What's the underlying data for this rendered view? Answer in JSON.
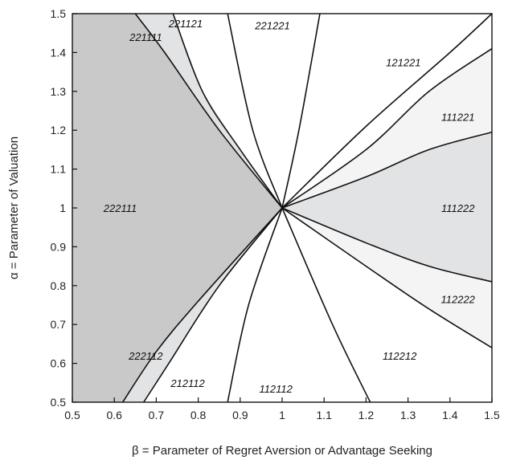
{
  "chart_data": {
    "type": "area",
    "xlabel": "β = Parameter of Regret Aversion or Advantage Seeking",
    "ylabel": "α = Parameter of Valuation",
    "xlim": [
      0.5,
      1.5
    ],
    "ylim": [
      0.5,
      1.5
    ],
    "x_ticks": [
      "0.5",
      "0.6",
      "0.7",
      "0.8",
      "0.9",
      "1",
      "1.1",
      "1.2",
      "1.3",
      "1.4",
      "1.5"
    ],
    "y_ticks": [
      "0.5",
      "0.6",
      "0.7",
      "0.8",
      "0.9",
      "1",
      "1.1",
      "1.2",
      "1.3",
      "1.4",
      "1.5"
    ],
    "grid": false,
    "colors": {
      "dark_gray": "#c9c9c9",
      "light_gray": "#e2e3e5",
      "lighter_gray": "#f4f4f4",
      "white": "#ffffff",
      "line": "#111111"
    },
    "boundaries": [
      {
        "name": "b1",
        "points": [
          [
            1,
            1
          ],
          [
            0.85,
            1.2
          ],
          [
            0.72,
            1.4
          ],
          [
            0.65,
            1.5
          ]
        ]
      },
      {
        "name": "b2",
        "points": [
          [
            1,
            1
          ],
          [
            0.9,
            1.15
          ],
          [
            0.81,
            1.3
          ],
          [
            0.74,
            1.5
          ]
        ]
      },
      {
        "name": "b3",
        "points": [
          [
            1,
            1
          ],
          [
            0.93,
            1.2
          ],
          [
            0.87,
            1.5
          ]
        ]
      },
      {
        "name": "b4",
        "points": [
          [
            1,
            1
          ],
          [
            1.04,
            1.2
          ],
          [
            1.09,
            1.5
          ]
        ]
      },
      {
        "name": "b5",
        "points": [
          [
            1,
            1
          ],
          [
            1.2,
            1.21
          ],
          [
            1.4,
            1.4
          ],
          [
            1.5,
            1.5
          ]
        ]
      },
      {
        "name": "b6",
        "points": [
          [
            1,
            1
          ],
          [
            1.2,
            1.15
          ],
          [
            1.35,
            1.3
          ],
          [
            1.5,
            1.41
          ]
        ]
      },
      {
        "name": "b7",
        "points": [
          [
            1,
            1
          ],
          [
            1.2,
            1.08
          ],
          [
            1.35,
            1.15
          ],
          [
            1.5,
            1.195
          ]
        ]
      },
      {
        "name": "b8",
        "points": [
          [
            1,
            1
          ],
          [
            1.2,
            0.91
          ],
          [
            1.35,
            0.85
          ],
          [
            1.5,
            0.81
          ]
        ]
      },
      {
        "name": "b9",
        "points": [
          [
            1,
            1
          ],
          [
            1.2,
            0.85
          ],
          [
            1.35,
            0.74
          ],
          [
            1.5,
            0.64
          ]
        ]
      },
      {
        "name": "b10",
        "points": [
          [
            1,
            1
          ],
          [
            1.12,
            0.7
          ],
          [
            1.21,
            0.5
          ]
        ]
      },
      {
        "name": "b11",
        "points": [
          [
            1,
            1
          ],
          [
            0.92,
            0.75
          ],
          [
            0.87,
            0.5
          ]
        ]
      },
      {
        "name": "b12",
        "points": [
          [
            1,
            1
          ],
          [
            0.85,
            0.8
          ],
          [
            0.73,
            0.6
          ],
          [
            0.67,
            0.5
          ]
        ]
      },
      {
        "name": "b13",
        "points": [
          [
            1,
            1
          ],
          [
            0.8,
            0.76
          ],
          [
            0.7,
            0.63
          ],
          [
            0.62,
            0.5
          ]
        ]
      }
    ],
    "regions": [
      {
        "label": "222111",
        "color": "dark_gray",
        "label_at": [
          0.614,
          1.0
        ],
        "polygon": [
          [
            0.5,
            0.5
          ],
          [
            0.5,
            1.5
          ],
          [
            0.65,
            1.5
          ],
          [
            0.72,
            1.4
          ],
          [
            0.85,
            1.2
          ],
          [
            1,
            1
          ],
          [
            0.8,
            0.76
          ],
          [
            0.7,
            0.63
          ],
          [
            0.62,
            0.5
          ]
        ]
      },
      {
        "label": "221111",
        "color": "light_gray",
        "label_at": [
          0.675,
          1.44
        ],
        "polygon": [
          [
            0.65,
            1.5
          ],
          [
            0.74,
            1.5
          ],
          [
            0.81,
            1.3
          ],
          [
            0.9,
            1.15
          ],
          [
            1,
            1
          ],
          [
            0.85,
            1.2
          ],
          [
            0.72,
            1.4
          ]
        ]
      },
      {
        "label": "221121",
        "color": "white",
        "label_at": [
          0.77,
          1.475
        ],
        "polygon": []
      },
      {
        "label": "221221",
        "color": "white",
        "label_at": [
          0.977,
          1.47
        ],
        "polygon": []
      },
      {
        "label": "121221",
        "color": "white",
        "label_at": [
          1.289,
          1.375
        ],
        "polygon": []
      },
      {
        "label": "111221",
        "color": "lighter_gray",
        "label_at": [
          1.419,
          1.235
        ],
        "polygon": [
          [
            1,
            1
          ],
          [
            1.2,
            1.15
          ],
          [
            1.35,
            1.3
          ],
          [
            1.5,
            1.41
          ],
          [
            1.5,
            1.195
          ],
          [
            1.35,
            1.15
          ],
          [
            1.2,
            1.08
          ]
        ]
      },
      {
        "label": "111222",
        "color": "light_gray",
        "label_at": [
          1.419,
          1.0
        ],
        "polygon": [
          [
            1,
            1
          ],
          [
            1.2,
            1.08
          ],
          [
            1.35,
            1.15
          ],
          [
            1.5,
            1.195
          ],
          [
            1.5,
            0.81
          ],
          [
            1.35,
            0.85
          ],
          [
            1.2,
            0.91
          ]
        ]
      },
      {
        "label": "112222",
        "color": "lighter_gray",
        "label_at": [
          1.419,
          0.765
        ],
        "polygon": [
          [
            1,
            1
          ],
          [
            1.2,
            0.91
          ],
          [
            1.35,
            0.85
          ],
          [
            1.5,
            0.81
          ],
          [
            1.5,
            0.64
          ],
          [
            1.35,
            0.74
          ],
          [
            1.2,
            0.85
          ]
        ]
      },
      {
        "label": "112212",
        "color": "white",
        "label_at": [
          1.28,
          0.62
        ],
        "polygon": []
      },
      {
        "label": "112112",
        "color": "white",
        "label_at": [
          0.985,
          0.535
        ],
        "polygon": []
      },
      {
        "label": "212112",
        "color": "white",
        "label_at": [
          0.775,
          0.55
        ],
        "polygon": []
      },
      {
        "label": "222112",
        "color": "light_gray",
        "label_at": [
          0.675,
          0.62
        ],
        "polygon": [
          [
            0.62,
            0.5
          ],
          [
            0.7,
            0.63
          ],
          [
            0.8,
            0.76
          ],
          [
            1,
            1
          ],
          [
            0.85,
            0.8
          ],
          [
            0.73,
            0.6
          ],
          [
            0.67,
            0.5
          ]
        ]
      }
    ]
  }
}
